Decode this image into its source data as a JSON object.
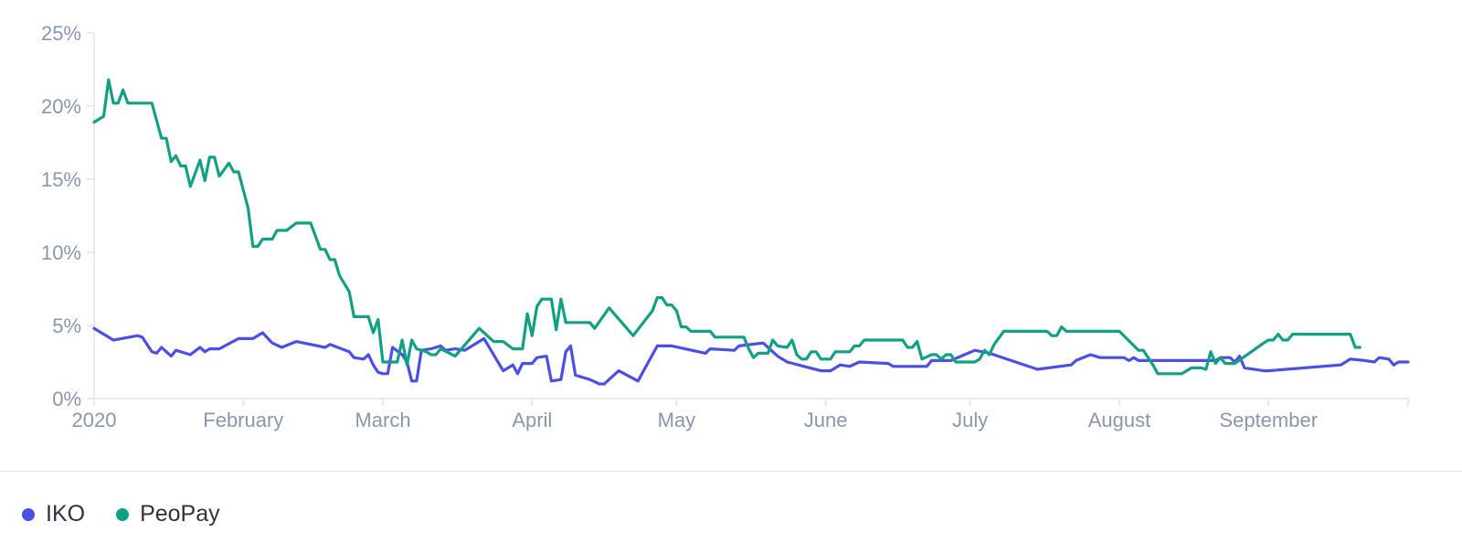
{
  "chart_data": {
    "type": "line",
    "title": "",
    "xlabel": "",
    "ylabel": "",
    "ylim": [
      0,
      25
    ],
    "xlim": [
      "2020-01-01",
      "2020-09-30"
    ],
    "y_ticks": [
      {
        "value": 0,
        "label": "0%"
      },
      {
        "value": 5,
        "label": "5%"
      },
      {
        "value": 10,
        "label": "10%"
      },
      {
        "value": 15,
        "label": "15%"
      },
      {
        "value": 20,
        "label": "20%"
      },
      {
        "value": 25,
        "label": "25%"
      }
    ],
    "x_ticks": [
      {
        "date": "2020-01-01",
        "label": "2020"
      },
      {
        "date": "2020-02-01",
        "label": "February"
      },
      {
        "date": "2020-03-01",
        "label": "March"
      },
      {
        "date": "2020-04-01",
        "label": "April"
      },
      {
        "date": "2020-05-01",
        "label": "May"
      },
      {
        "date": "2020-06-01",
        "label": "June"
      },
      {
        "date": "2020-07-01",
        "label": "July"
      },
      {
        "date": "2020-08-01",
        "label": "August"
      },
      {
        "date": "2020-09-01",
        "label": "September"
      }
    ],
    "grid": false,
    "legend": "bottom-left",
    "series": [
      {
        "name": "IKO",
        "color": "#4b4fe6",
        "points": [
          [
            "2020-01-01",
            4.8
          ],
          [
            "2020-01-05",
            4.0
          ],
          [
            "2020-01-10",
            4.3
          ],
          [
            "2020-01-11",
            4.2
          ],
          [
            "2020-01-13",
            3.2
          ],
          [
            "2020-01-14",
            3.1
          ],
          [
            "2020-01-15",
            3.5
          ],
          [
            "2020-01-17",
            2.9
          ],
          [
            "2020-01-18",
            3.3
          ],
          [
            "2020-01-21",
            3.0
          ],
          [
            "2020-01-23",
            3.5
          ],
          [
            "2020-01-24",
            3.2
          ],
          [
            "2020-01-25",
            3.4
          ],
          [
            "2020-01-27",
            3.4
          ],
          [
            "2020-01-31",
            4.1
          ],
          [
            "2020-02-03",
            4.1
          ],
          [
            "2020-02-05",
            4.5
          ],
          [
            "2020-02-07",
            3.8
          ],
          [
            "2020-02-09",
            3.5
          ],
          [
            "2020-02-12",
            3.9
          ],
          [
            "2020-02-18",
            3.5
          ],
          [
            "2020-02-19",
            3.7
          ],
          [
            "2020-02-23",
            3.2
          ],
          [
            "2020-02-24",
            2.8
          ],
          [
            "2020-02-26",
            2.7
          ],
          [
            "2020-02-27",
            3.0
          ],
          [
            "2020-02-28",
            2.3
          ],
          [
            "2020-02-29",
            1.8
          ],
          [
            "2020-03-01",
            1.7
          ],
          [
            "2020-03-02",
            1.7
          ],
          [
            "2020-03-03",
            3.5
          ],
          [
            "2020-03-05",
            3.0
          ],
          [
            "2020-03-06",
            2.5
          ],
          [
            "2020-03-07",
            1.2
          ],
          [
            "2020-03-08",
            1.2
          ],
          [
            "2020-03-09",
            3.3
          ],
          [
            "2020-03-11",
            3.4
          ],
          [
            "2020-03-13",
            3.6
          ],
          [
            "2020-03-14",
            3.3
          ],
          [
            "2020-03-16",
            3.4
          ],
          [
            "2020-03-18",
            3.3
          ],
          [
            "2020-03-22",
            4.1
          ],
          [
            "2020-03-26",
            1.9
          ],
          [
            "2020-03-28",
            2.3
          ],
          [
            "2020-03-29",
            1.7
          ],
          [
            "2020-03-30",
            2.4
          ],
          [
            "2020-04-01",
            2.4
          ],
          [
            "2020-04-02",
            2.8
          ],
          [
            "2020-04-04",
            2.9
          ],
          [
            "2020-04-05",
            1.2
          ],
          [
            "2020-04-07",
            1.3
          ],
          [
            "2020-04-08",
            3.2
          ],
          [
            "2020-04-09",
            3.6
          ],
          [
            "2020-04-10",
            1.6
          ],
          [
            "2020-04-13",
            1.3
          ],
          [
            "2020-04-15",
            1.0
          ],
          [
            "2020-04-16",
            1.0
          ],
          [
            "2020-04-19",
            1.9
          ],
          [
            "2020-04-23",
            1.2
          ],
          [
            "2020-04-27",
            3.6
          ],
          [
            "2020-04-30",
            3.6
          ],
          [
            "2020-05-07",
            3.1
          ],
          [
            "2020-05-08",
            3.4
          ],
          [
            "2020-05-13",
            3.3
          ],
          [
            "2020-05-14",
            3.6
          ],
          [
            "2020-05-19",
            3.8
          ],
          [
            "2020-05-22",
            2.9
          ],
          [
            "2020-05-24",
            2.5
          ],
          [
            "2020-05-31",
            1.9
          ],
          [
            "2020-06-02",
            1.9
          ],
          [
            "2020-06-04",
            2.3
          ],
          [
            "2020-06-06",
            2.2
          ],
          [
            "2020-06-08",
            2.5
          ],
          [
            "2020-06-14",
            2.4
          ],
          [
            "2020-06-15",
            2.2
          ],
          [
            "2020-06-22",
            2.2
          ],
          [
            "2020-06-23",
            2.6
          ],
          [
            "2020-06-27",
            2.6
          ],
          [
            "2020-07-02",
            3.3
          ],
          [
            "2020-07-05",
            3.1
          ],
          [
            "2020-07-15",
            2.0
          ],
          [
            "2020-07-22",
            2.3
          ],
          [
            "2020-07-23",
            2.6
          ],
          [
            "2020-07-26",
            3.0
          ],
          [
            "2020-07-28",
            2.8
          ],
          [
            "2020-08-02",
            2.8
          ],
          [
            "2020-08-03",
            2.6
          ],
          [
            "2020-08-04",
            2.8
          ],
          [
            "2020-08-05",
            2.6
          ],
          [
            "2020-08-21",
            2.6
          ],
          [
            "2020-08-22",
            2.8
          ],
          [
            "2020-08-24",
            2.8
          ],
          [
            "2020-08-25",
            2.5
          ],
          [
            "2020-08-26",
            2.9
          ],
          [
            "2020-08-27",
            2.1
          ],
          [
            "2020-08-31",
            1.9
          ],
          [
            "2020-09-01",
            1.9
          ],
          [
            "2020-09-16",
            2.3
          ],
          [
            "2020-09-18",
            2.7
          ],
          [
            "2020-09-21",
            2.6
          ],
          [
            "2020-09-23",
            2.5
          ],
          [
            "2020-09-24",
            2.8
          ],
          [
            "2020-09-26",
            2.7
          ],
          [
            "2020-09-27",
            2.3
          ],
          [
            "2020-09-28",
            2.5
          ],
          [
            "2020-09-30",
            2.5
          ]
        ]
      },
      {
        "name": "PeoPay",
        "color": "#12a085",
        "points": [
          [
            "2020-01-01",
            18.9
          ],
          [
            "2020-01-03",
            19.3
          ],
          [
            "2020-01-04",
            21.8
          ],
          [
            "2020-01-05",
            20.2
          ],
          [
            "2020-01-06",
            20.2
          ],
          [
            "2020-01-07",
            21.1
          ],
          [
            "2020-01-08",
            20.2
          ],
          [
            "2020-01-13",
            20.2
          ],
          [
            "2020-01-14",
            19.0
          ],
          [
            "2020-01-15",
            17.8
          ],
          [
            "2020-01-16",
            17.8
          ],
          [
            "2020-01-17",
            16.2
          ],
          [
            "2020-01-18",
            16.6
          ],
          [
            "2020-01-19",
            15.9
          ],
          [
            "2020-01-20",
            15.9
          ],
          [
            "2020-01-21",
            14.5
          ],
          [
            "2020-01-23",
            16.3
          ],
          [
            "2020-01-24",
            14.9
          ],
          [
            "2020-01-25",
            16.5
          ],
          [
            "2020-01-26",
            16.5
          ],
          [
            "2020-01-27",
            15.2
          ],
          [
            "2020-01-29",
            16.1
          ],
          [
            "2020-01-30",
            15.5
          ],
          [
            "2020-01-31",
            15.5
          ],
          [
            "2020-02-02",
            13.0
          ],
          [
            "2020-02-03",
            10.4
          ],
          [
            "2020-02-04",
            10.4
          ],
          [
            "2020-02-05",
            10.9
          ],
          [
            "2020-02-07",
            10.9
          ],
          [
            "2020-02-08",
            11.5
          ],
          [
            "2020-02-10",
            11.5
          ],
          [
            "2020-02-12",
            12.0
          ],
          [
            "2020-02-15",
            12.0
          ],
          [
            "2020-02-17",
            10.2
          ],
          [
            "2020-02-18",
            10.2
          ],
          [
            "2020-02-19",
            9.5
          ],
          [
            "2020-02-20",
            9.5
          ],
          [
            "2020-02-21",
            8.4
          ],
          [
            "2020-02-23",
            7.3
          ],
          [
            "2020-02-24",
            5.6
          ],
          [
            "2020-02-27",
            5.6
          ],
          [
            "2020-02-28",
            4.5
          ],
          [
            "2020-02-29",
            5.4
          ],
          [
            "2020-03-01",
            2.5
          ],
          [
            "2020-03-03",
            2.5
          ],
          [
            "2020-03-04",
            2.5
          ],
          [
            "2020-03-05",
            4.0
          ],
          [
            "2020-03-06",
            2.3
          ],
          [
            "2020-03-07",
            4.0
          ],
          [
            "2020-03-08",
            3.4
          ],
          [
            "2020-03-10",
            3.2
          ],
          [
            "2020-03-11",
            3.0
          ],
          [
            "2020-03-12",
            3.0
          ],
          [
            "2020-03-13",
            3.4
          ],
          [
            "2020-03-16",
            2.9
          ],
          [
            "2020-03-21",
            4.8
          ],
          [
            "2020-03-24",
            3.9
          ],
          [
            "2020-03-26",
            3.9
          ],
          [
            "2020-03-28",
            3.4
          ],
          [
            "2020-03-30",
            3.4
          ],
          [
            "2020-03-31",
            5.8
          ],
          [
            "2020-04-01",
            4.3
          ],
          [
            "2020-04-02",
            6.3
          ],
          [
            "2020-04-03",
            6.8
          ],
          [
            "2020-04-05",
            6.8
          ],
          [
            "2020-04-06",
            4.7
          ],
          [
            "2020-04-07",
            6.8
          ],
          [
            "2020-04-08",
            5.2
          ],
          [
            "2020-04-13",
            5.2
          ],
          [
            "2020-04-14",
            4.8
          ],
          [
            "2020-04-17",
            6.2
          ],
          [
            "2020-04-22",
            4.3
          ],
          [
            "2020-04-26",
            6.0
          ],
          [
            "2020-04-27",
            6.9
          ],
          [
            "2020-04-28",
            6.9
          ],
          [
            "2020-04-29",
            6.4
          ],
          [
            "2020-04-30",
            6.4
          ],
          [
            "2020-05-01",
            6.0
          ],
          [
            "2020-05-02",
            4.9
          ],
          [
            "2020-05-03",
            4.9
          ],
          [
            "2020-05-04",
            4.6
          ],
          [
            "2020-05-08",
            4.6
          ],
          [
            "2020-05-09",
            4.2
          ],
          [
            "2020-05-14",
            4.2
          ],
          [
            "2020-05-15",
            4.2
          ],
          [
            "2020-05-16",
            3.4
          ],
          [
            "2020-05-17",
            2.8
          ],
          [
            "2020-05-18",
            3.1
          ],
          [
            "2020-05-20",
            3.1
          ],
          [
            "2020-05-21",
            4.0
          ],
          [
            "2020-05-22",
            3.6
          ],
          [
            "2020-05-24",
            3.5
          ],
          [
            "2020-05-25",
            4.0
          ],
          [
            "2020-05-26",
            3.0
          ],
          [
            "2020-05-27",
            2.7
          ],
          [
            "2020-05-28",
            2.7
          ],
          [
            "2020-05-29",
            3.2
          ],
          [
            "2020-05-30",
            3.2
          ],
          [
            "2020-05-31",
            2.7
          ],
          [
            "2020-06-02",
            2.7
          ],
          [
            "2020-06-03",
            3.2
          ],
          [
            "2020-06-06",
            3.2
          ],
          [
            "2020-06-07",
            3.6
          ],
          [
            "2020-06-08",
            3.6
          ],
          [
            "2020-06-09",
            4.0
          ],
          [
            "2020-06-17",
            4.0
          ],
          [
            "2020-06-18",
            3.5
          ],
          [
            "2020-06-19",
            3.5
          ],
          [
            "2020-06-20",
            3.9
          ],
          [
            "2020-06-21",
            2.7
          ],
          [
            "2020-06-23",
            3.0
          ],
          [
            "2020-06-24",
            3.0
          ],
          [
            "2020-06-25",
            2.7
          ],
          [
            "2020-06-26",
            3.0
          ],
          [
            "2020-06-27",
            3.0
          ],
          [
            "2020-06-28",
            2.5
          ],
          [
            "2020-07-02",
            2.5
          ],
          [
            "2020-07-03",
            2.7
          ],
          [
            "2020-07-04",
            3.3
          ],
          [
            "2020-07-05",
            3.0
          ],
          [
            "2020-07-06",
            3.7
          ],
          [
            "2020-07-08",
            4.6
          ],
          [
            "2020-07-17",
            4.6
          ],
          [
            "2020-07-18",
            4.3
          ],
          [
            "2020-07-19",
            4.3
          ],
          [
            "2020-07-20",
            4.9
          ],
          [
            "2020-07-21",
            4.6
          ],
          [
            "2020-08-01",
            4.6
          ],
          [
            "2020-08-05",
            3.3
          ],
          [
            "2020-08-06",
            3.3
          ],
          [
            "2020-08-08",
            2.3
          ],
          [
            "2020-08-09",
            1.7
          ],
          [
            "2020-08-14",
            1.7
          ],
          [
            "2020-08-16",
            2.1
          ],
          [
            "2020-08-18",
            2.1
          ],
          [
            "2020-08-19",
            2.0
          ],
          [
            "2020-08-20",
            3.2
          ],
          [
            "2020-08-21",
            2.4
          ],
          [
            "2020-08-22",
            2.8
          ],
          [
            "2020-08-23",
            2.4
          ],
          [
            "2020-08-25",
            2.4
          ],
          [
            "2020-08-31",
            3.8
          ],
          [
            "2020-09-01",
            4.0
          ],
          [
            "2020-09-02",
            4.0
          ],
          [
            "2020-09-03",
            4.4
          ],
          [
            "2020-09-04",
            4.0
          ],
          [
            "2020-09-05",
            4.0
          ],
          [
            "2020-09-06",
            4.4
          ],
          [
            "2020-09-18",
            4.4
          ],
          [
            "2020-09-19",
            3.5
          ],
          [
            "2020-09-20",
            3.5
          ]
        ]
      }
    ]
  }
}
